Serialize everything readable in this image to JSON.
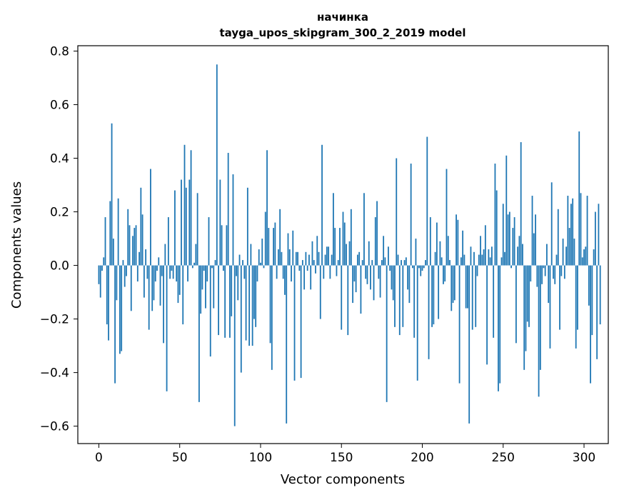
{
  "chart_data": {
    "type": "bar",
    "title": "начинка",
    "subtitle": "tayga_upos_skipgram_300_2_2019 model",
    "xlabel": "Vector components",
    "ylabel": "Components values",
    "xlim": [
      -13,
      315
    ],
    "ylim": [
      -0.665,
      0.82
    ],
    "xticks": [
      0,
      50,
      100,
      150,
      200,
      250,
      300
    ],
    "yticks": [
      -0.6,
      -0.4,
      -0.2,
      0.0,
      0.2,
      0.4,
      0.6,
      0.8
    ],
    "ytick_labels": [
      "−0.6",
      "−0.4",
      "−0.2",
      "0.0",
      "0.2",
      "0.4",
      "0.6",
      "0.8"
    ],
    "bar_color": "#1f77b4",
    "grid": false,
    "values": [
      -0.07,
      -0.12,
      -0.02,
      0.03,
      0.18,
      -0.22,
      -0.28,
      0.24,
      0.53,
      0.1,
      -0.44,
      -0.13,
      0.25,
      -0.33,
      -0.32,
      0.02,
      -0.08,
      -0.04,
      0.21,
      0.15,
      -0.17,
      0.11,
      0.14,
      0.15,
      -0.06,
      0.05,
      0.29,
      0.19,
      -0.12,
      0.06,
      -0.05,
      -0.24,
      0.36,
      -0.17,
      -0.13,
      -0.06,
      -0.02,
      0.03,
      -0.15,
      -0.04,
      -0.29,
      0.08,
      -0.47,
      0.18,
      -0.05,
      -0.02,
      -0.05,
      0.28,
      -0.06,
      -0.14,
      -0.11,
      0.32,
      -0.22,
      0.45,
      0.29,
      -0.06,
      0.32,
      0.43,
      -0.01,
      0.01,
      0.08,
      0.27,
      -0.51,
      -0.18,
      -0.09,
      -0.02,
      -0.16,
      -0.06,
      0.18,
      -0.34,
      -0.01,
      -0.16,
      0.02,
      0.75,
      -0.26,
      0.32,
      0.15,
      -0.02,
      -0.27,
      0.15,
      0.42,
      -0.27,
      -0.19,
      0.34,
      -0.6,
      -0.04,
      -0.13,
      0.04,
      -0.4,
      0.02,
      -0.05,
      -0.28,
      0.29,
      -0.3,
      0.08,
      -0.3,
      -0.2,
      -0.23,
      -0.06,
      0.06,
      0.01,
      0.1,
      -0.01,
      0.2,
      0.43,
      0.14,
      -0.29,
      -0.39,
      0.14,
      0.16,
      -0.05,
      0.06,
      0.21,
      0.05,
      -0.05,
      -0.11,
      -0.59,
      0.12,
      0.06,
      -0.06,
      0.13,
      -0.43,
      0.05,
      0.05,
      -0.02,
      -0.42,
      0.02,
      -0.09,
      0.05,
      -0.02,
      0.04,
      -0.09,
      0.09,
      0.02,
      -0.03,
      0.11,
      0.05,
      -0.2,
      0.45,
      -0.05,
      0.04,
      0.07,
      0.07,
      -0.05,
      0.04,
      0.27,
      0.14,
      -0.04,
      0.02,
      0.14,
      -0.24,
      0.2,
      0.16,
      0.08,
      -0.26,
      0.09,
      0.21,
      -0.14,
      -0.06,
      -0.1,
      0.04,
      0.05,
      -0.18,
      0.02,
      0.27,
      -0.05,
      -0.07,
      0.09,
      -0.09,
      0.02,
      -0.13,
      0.18,
      0.24,
      -0.05,
      -0.12,
      0.02,
      0.11,
      0.03,
      -0.51,
      0.07,
      -0.02,
      -0.09,
      -0.13,
      -0.23,
      0.4,
      0.04,
      -0.26,
      0.02,
      -0.23,
      0.02,
      0.03,
      -0.09,
      -0.14,
      0.38,
      -0.01,
      -0.27,
      0.1,
      -0.43,
      -0.01,
      -0.04,
      -0.02,
      -0.01,
      0.02,
      0.48,
      -0.35,
      0.18,
      -0.23,
      -0.22,
      0.05,
      0.16,
      -0.2,
      0.09,
      0.03,
      -0.07,
      -0.06,
      0.36,
      0.11,
      0.02,
      -0.17,
      -0.14,
      -0.13,
      0.19,
      0.17,
      -0.44,
      0.03,
      0.13,
      0.04,
      -0.16,
      -0.16,
      -0.59,
      0.07,
      -0.24,
      0.05,
      -0.23,
      -0.04,
      0.04,
      0.11,
      0.04,
      0.06,
      0.15,
      -0.37,
      0.06,
      0.03,
      0.07,
      -0.27,
      0.38,
      0.28,
      -0.47,
      -0.44,
      0.03,
      0.23,
      0.05,
      0.41,
      0.19,
      0.2,
      -0.01,
      0.14,
      0.18,
      -0.29,
      0.07,
      0.11,
      0.46,
      0.08,
      -0.39,
      -0.32,
      -0.21,
      -0.23,
      -0.06,
      0.26,
      0.12,
      0.19,
      -0.08,
      -0.49,
      -0.39,
      -0.07,
      -0.01,
      -0.04,
      0.08,
      -0.14,
      -0.31,
      0.31,
      -0.05,
      -0.07,
      0.04,
      0.21,
      -0.24,
      -0.04,
      0.1,
      -0.05,
      0.07,
      0.26,
      0.14,
      0.23,
      0.25,
      0.1,
      -0.31,
      -0.24,
      0.5,
      0.27,
      0.03,
      0.06,
      0.07,
      0.26,
      -0.15,
      -0.44,
      -0.26,
      0.06,
      0.2,
      -0.35,
      0.23,
      -0.22
    ]
  }
}
